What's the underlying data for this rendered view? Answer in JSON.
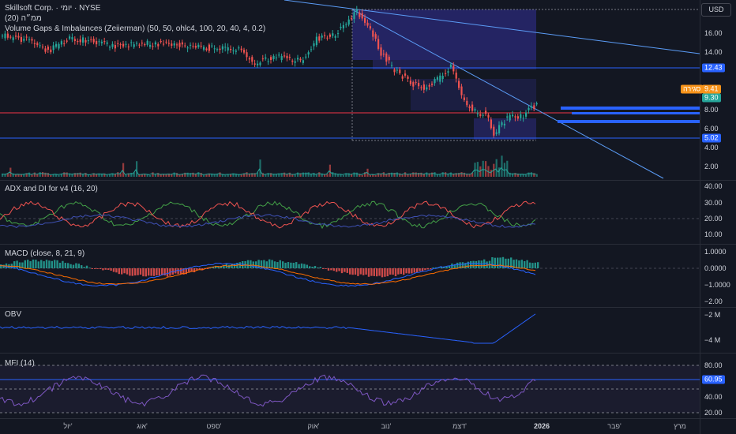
{
  "header": {
    "symbol_line": "Skillsoft Corp. · יומי · NYSE",
    "ma_line": "ממ״ה (20)",
    "vol_gaps_line": "Volume Gaps & Imbalances (Zeiierman) (50, 50, ohlc4, 100, 20, 40, 4, 0.2)"
  },
  "currency_label": "USD",
  "price_axis": {
    "ticks": [
      "16.00",
      "14.00",
      "8.00",
      "6.00",
      "4.00",
      "2.00"
    ],
    "level_badges": [
      {
        "label": "12.43",
        "color": "#2962ff"
      },
      {
        "label": "9.30",
        "color": "#26a69a"
      },
      {
        "label": "5.02",
        "color": "#2962ff"
      }
    ],
    "last_price": {
      "label": "9.41",
      "tag": "סגירה",
      "color": "#f7931a"
    }
  },
  "adx": {
    "title": "ADX and DI for v4 (16, 20)",
    "ticks": [
      "40.00",
      "30.00",
      "20.00",
      "10.00"
    ]
  },
  "macd": {
    "title": "MACD (close, 8, 21, 9)",
    "ticks": [
      "1.0000",
      "0.0000",
      "−1.0000",
      "−2.00"
    ]
  },
  "obv": {
    "title": "OBV",
    "ticks": [
      "−2 M",
      "−4 M"
    ]
  },
  "mfi": {
    "title": "MFI (14)",
    "ticks": [
      "80.00",
      "40.00",
      "20.00"
    ],
    "badge": {
      "label": "60.95",
      "color": "#2962ff"
    }
  },
  "time_axis": [
    "יול'",
    "אוג'",
    "ספט'",
    "אוק'",
    "נוב'",
    "דצמ'",
    "2026",
    "פבר'",
    "מרץ"
  ],
  "colors": {
    "up": "#26a69a",
    "down": "#ef5350",
    "level": "#2962ff",
    "trend": "#5b9cf6",
    "support": "#f23645"
  }
}
